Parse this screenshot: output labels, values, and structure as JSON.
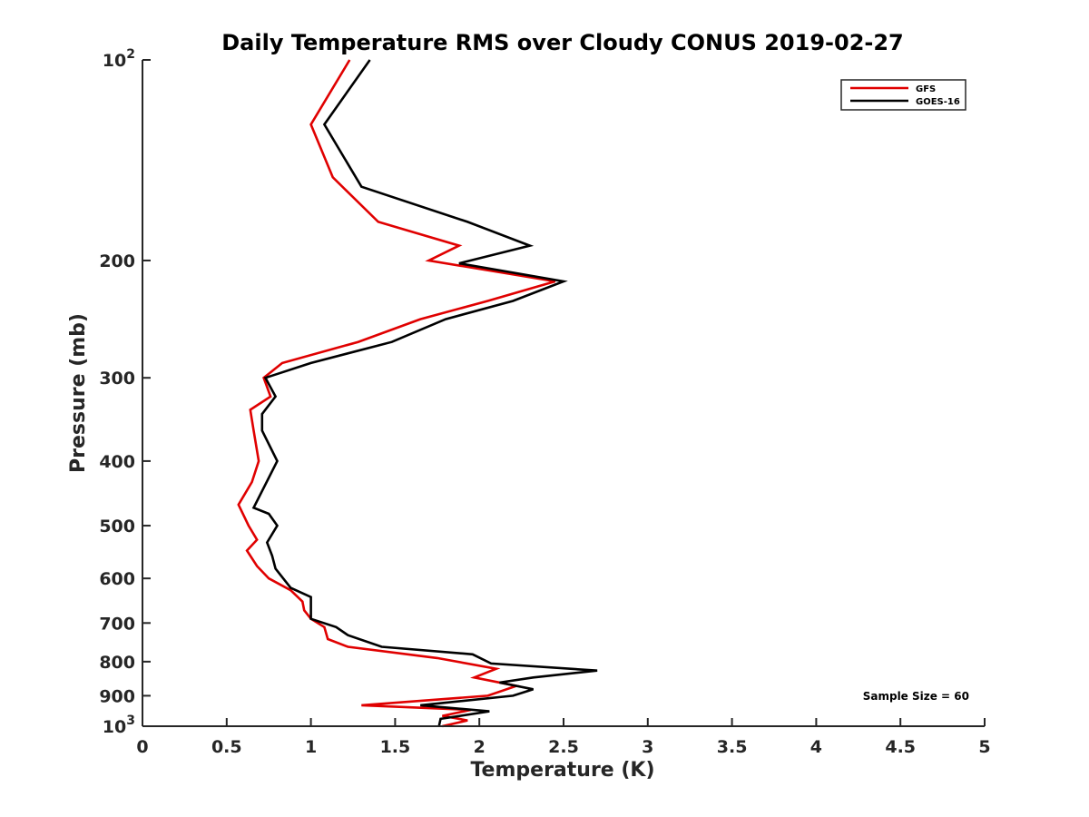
{
  "chart_data": {
    "type": "line",
    "title": "Daily Temperature RMS over Cloudy CONUS 2019-02-27",
    "xlabel": "Temperature (K)",
    "ylabel": "Pressure (mb)",
    "xlim": [
      0,
      5
    ],
    "ylim": [
      1000,
      100
    ],
    "y_scale": "log",
    "y_reversed": true,
    "x_ticks": [
      "0",
      "0.5",
      "1",
      "1.5",
      "2",
      "2.5",
      "3",
      "3.5",
      "4",
      "4.5",
      "5"
    ],
    "x_tick_values": [
      0,
      0.5,
      1,
      1.5,
      2,
      2.5,
      3,
      3.5,
      4,
      4.5,
      5
    ],
    "y_ticks": [
      {
        "value": 100,
        "base": "10",
        "exp": "2"
      },
      {
        "value": 200,
        "label": "200"
      },
      {
        "value": 300,
        "label": "300"
      },
      {
        "value": 400,
        "label": "400"
      },
      {
        "value": 500,
        "label": "500"
      },
      {
        "value": 600,
        "label": "600"
      },
      {
        "value": 700,
        "label": "700"
      },
      {
        "value": 800,
        "label": "800"
      },
      {
        "value": 900,
        "label": "900"
      },
      {
        "value": 1000,
        "base": "10",
        "exp": "3"
      }
    ],
    "grid": false,
    "legend_position": "top-right",
    "annotation": "Sample Size = 60",
    "series": [
      {
        "name": "GFS",
        "color": "#e00000",
        "points": [
          [
            1.23,
            100
          ],
          [
            1.0,
            125
          ],
          [
            1.13,
            150
          ],
          [
            1.4,
            175
          ],
          [
            1.88,
            190
          ],
          [
            1.7,
            200
          ],
          [
            2.45,
            215
          ],
          [
            2.05,
            230
          ],
          [
            1.65,
            245
          ],
          [
            1.28,
            265
          ],
          [
            0.83,
            285
          ],
          [
            0.72,
            300
          ],
          [
            0.76,
            320
          ],
          [
            0.64,
            335
          ],
          [
            0.66,
            360
          ],
          [
            0.69,
            400
          ],
          [
            0.65,
            430
          ],
          [
            0.57,
            465
          ],
          [
            0.63,
            500
          ],
          [
            0.68,
            525
          ],
          [
            0.62,
            545
          ],
          [
            0.68,
            575
          ],
          [
            0.75,
            600
          ],
          [
            0.88,
            625
          ],
          [
            0.95,
            650
          ],
          [
            0.96,
            670
          ],
          [
            1.0,
            690
          ],
          [
            1.08,
            710
          ],
          [
            1.1,
            740
          ],
          [
            1.22,
            760
          ],
          [
            1.75,
            790
          ],
          [
            2.1,
            820
          ],
          [
            1.97,
            845
          ],
          [
            2.22,
            870
          ],
          [
            2.05,
            900
          ],
          [
            1.3,
            930
          ],
          [
            1.95,
            945
          ],
          [
            1.78,
            965
          ],
          [
            1.93,
            980
          ],
          [
            1.78,
            1000
          ]
        ]
      },
      {
        "name": "GOES-16",
        "color": "#000000",
        "points": [
          [
            1.35,
            100
          ],
          [
            1.08,
            125
          ],
          [
            1.3,
            155
          ],
          [
            1.93,
            175
          ],
          [
            2.3,
            190
          ],
          [
            1.88,
            202
          ],
          [
            2.5,
            215
          ],
          [
            2.2,
            230
          ],
          [
            1.8,
            245
          ],
          [
            1.48,
            265
          ],
          [
            1.0,
            285
          ],
          [
            0.73,
            300
          ],
          [
            0.79,
            320
          ],
          [
            0.71,
            340
          ],
          [
            0.71,
            360
          ],
          [
            0.8,
            400
          ],
          [
            0.66,
            470
          ],
          [
            0.75,
            480
          ],
          [
            0.8,
            500
          ],
          [
            0.74,
            530
          ],
          [
            0.77,
            555
          ],
          [
            0.79,
            580
          ],
          [
            0.88,
            620
          ],
          [
            1.0,
            640
          ],
          [
            1.0,
            690
          ],
          [
            1.15,
            710
          ],
          [
            1.22,
            730
          ],
          [
            1.42,
            760
          ],
          [
            1.96,
            780
          ],
          [
            2.07,
            805
          ],
          [
            2.7,
            825
          ],
          [
            2.32,
            845
          ],
          [
            2.12,
            860
          ],
          [
            2.32,
            880
          ],
          [
            2.2,
            900
          ],
          [
            1.65,
            930
          ],
          [
            2.06,
            950
          ],
          [
            1.77,
            975
          ],
          [
            1.76,
            1000
          ]
        ]
      }
    ]
  }
}
